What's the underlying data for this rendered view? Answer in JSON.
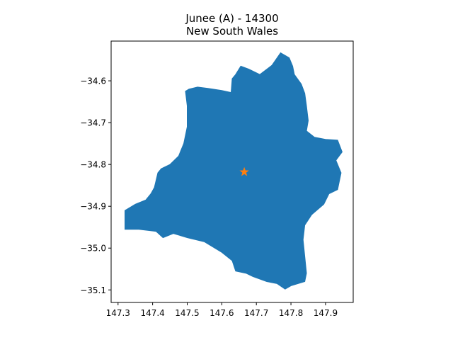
{
  "title": "Junee (A) - 14300",
  "subtitle": "New South Wales",
  "colors": {
    "region_fill": "#1f77b4",
    "marker": "#ff7f0e",
    "axis": "#000000",
    "background": "#ffffff"
  },
  "chart_data": {
    "type": "map",
    "title": "Junee (A) - 14300",
    "subtitle": "New South Wales",
    "xlim": [
      147.28,
      147.98
    ],
    "ylim": [
      -35.13,
      -34.505
    ],
    "x_ticks": [
      147.3,
      147.4,
      147.5,
      147.6,
      147.7,
      147.8,
      147.9
    ],
    "x_tick_labels": [
      "147.3",
      "147.4",
      "147.5",
      "147.6",
      "147.7",
      "147.8",
      "147.9"
    ],
    "y_ticks": [
      -34.6,
      -34.7,
      -34.8,
      -34.9,
      -35.0,
      -35.1
    ],
    "y_tick_labels": [
      "−34.6",
      "−34.7",
      "−34.8",
      "−34.9",
      "−35.0",
      "−35.1"
    ],
    "grid": false,
    "region": {
      "name": "Junee (A) - 14300",
      "outline": [
        [
          147.77,
          -34.533
        ],
        [
          147.795,
          -34.545
        ],
        [
          147.805,
          -34.565
        ],
        [
          147.81,
          -34.585
        ],
        [
          147.83,
          -34.608
        ],
        [
          147.84,
          -34.63
        ],
        [
          147.845,
          -34.66
        ],
        [
          147.85,
          -34.695
        ],
        [
          147.845,
          -34.72
        ],
        [
          147.868,
          -34.735
        ],
        [
          147.9,
          -34.74
        ],
        [
          147.935,
          -34.742
        ],
        [
          147.948,
          -34.77
        ],
        [
          147.93,
          -34.79
        ],
        [
          147.945,
          -34.82
        ],
        [
          147.935,
          -34.86
        ],
        [
          147.91,
          -34.87
        ],
        [
          147.895,
          -34.895
        ],
        [
          147.86,
          -34.92
        ],
        [
          147.84,
          -34.945
        ],
        [
          147.835,
          -34.98
        ],
        [
          147.84,
          -35.02
        ],
        [
          147.845,
          -35.06
        ],
        [
          147.84,
          -35.08
        ],
        [
          147.8,
          -35.09
        ],
        [
          147.783,
          -35.098
        ],
        [
          147.76,
          -35.085
        ],
        [
          147.73,
          -35.08
        ],
        [
          147.69,
          -35.068
        ],
        [
          147.67,
          -35.06
        ],
        [
          147.64,
          -35.055
        ],
        [
          147.63,
          -35.03
        ],
        [
          147.6,
          -35.01
        ],
        [
          147.55,
          -34.985
        ],
        [
          147.5,
          -34.975
        ],
        [
          147.46,
          -34.965
        ],
        [
          147.43,
          -34.975
        ],
        [
          147.41,
          -34.96
        ],
        [
          147.36,
          -34.955
        ],
        [
          147.32,
          -34.955
        ],
        [
          147.32,
          -34.91
        ],
        [
          147.35,
          -34.895
        ],
        [
          147.38,
          -34.885
        ],
        [
          147.395,
          -34.87
        ],
        [
          147.405,
          -34.855
        ],
        [
          147.415,
          -34.82
        ],
        [
          147.425,
          -34.81
        ],
        [
          147.45,
          -34.8
        ],
        [
          147.475,
          -34.78
        ],
        [
          147.49,
          -34.75
        ],
        [
          147.5,
          -34.71
        ],
        [
          147.5,
          -34.66
        ],
        [
          147.495,
          -34.625
        ],
        [
          147.505,
          -34.62
        ],
        [
          147.53,
          -34.615
        ],
        [
          147.56,
          -34.618
        ],
        [
          147.6,
          -34.623
        ],
        [
          147.627,
          -34.628
        ],
        [
          147.63,
          -34.595
        ],
        [
          147.64,
          -34.585
        ],
        [
          147.655,
          -34.565
        ],
        [
          147.678,
          -34.572
        ],
        [
          147.71,
          -34.585
        ],
        [
          147.745,
          -34.563
        ]
      ]
    },
    "marker": {
      "type": "star",
      "x": 147.665,
      "y": -34.818
    }
  }
}
